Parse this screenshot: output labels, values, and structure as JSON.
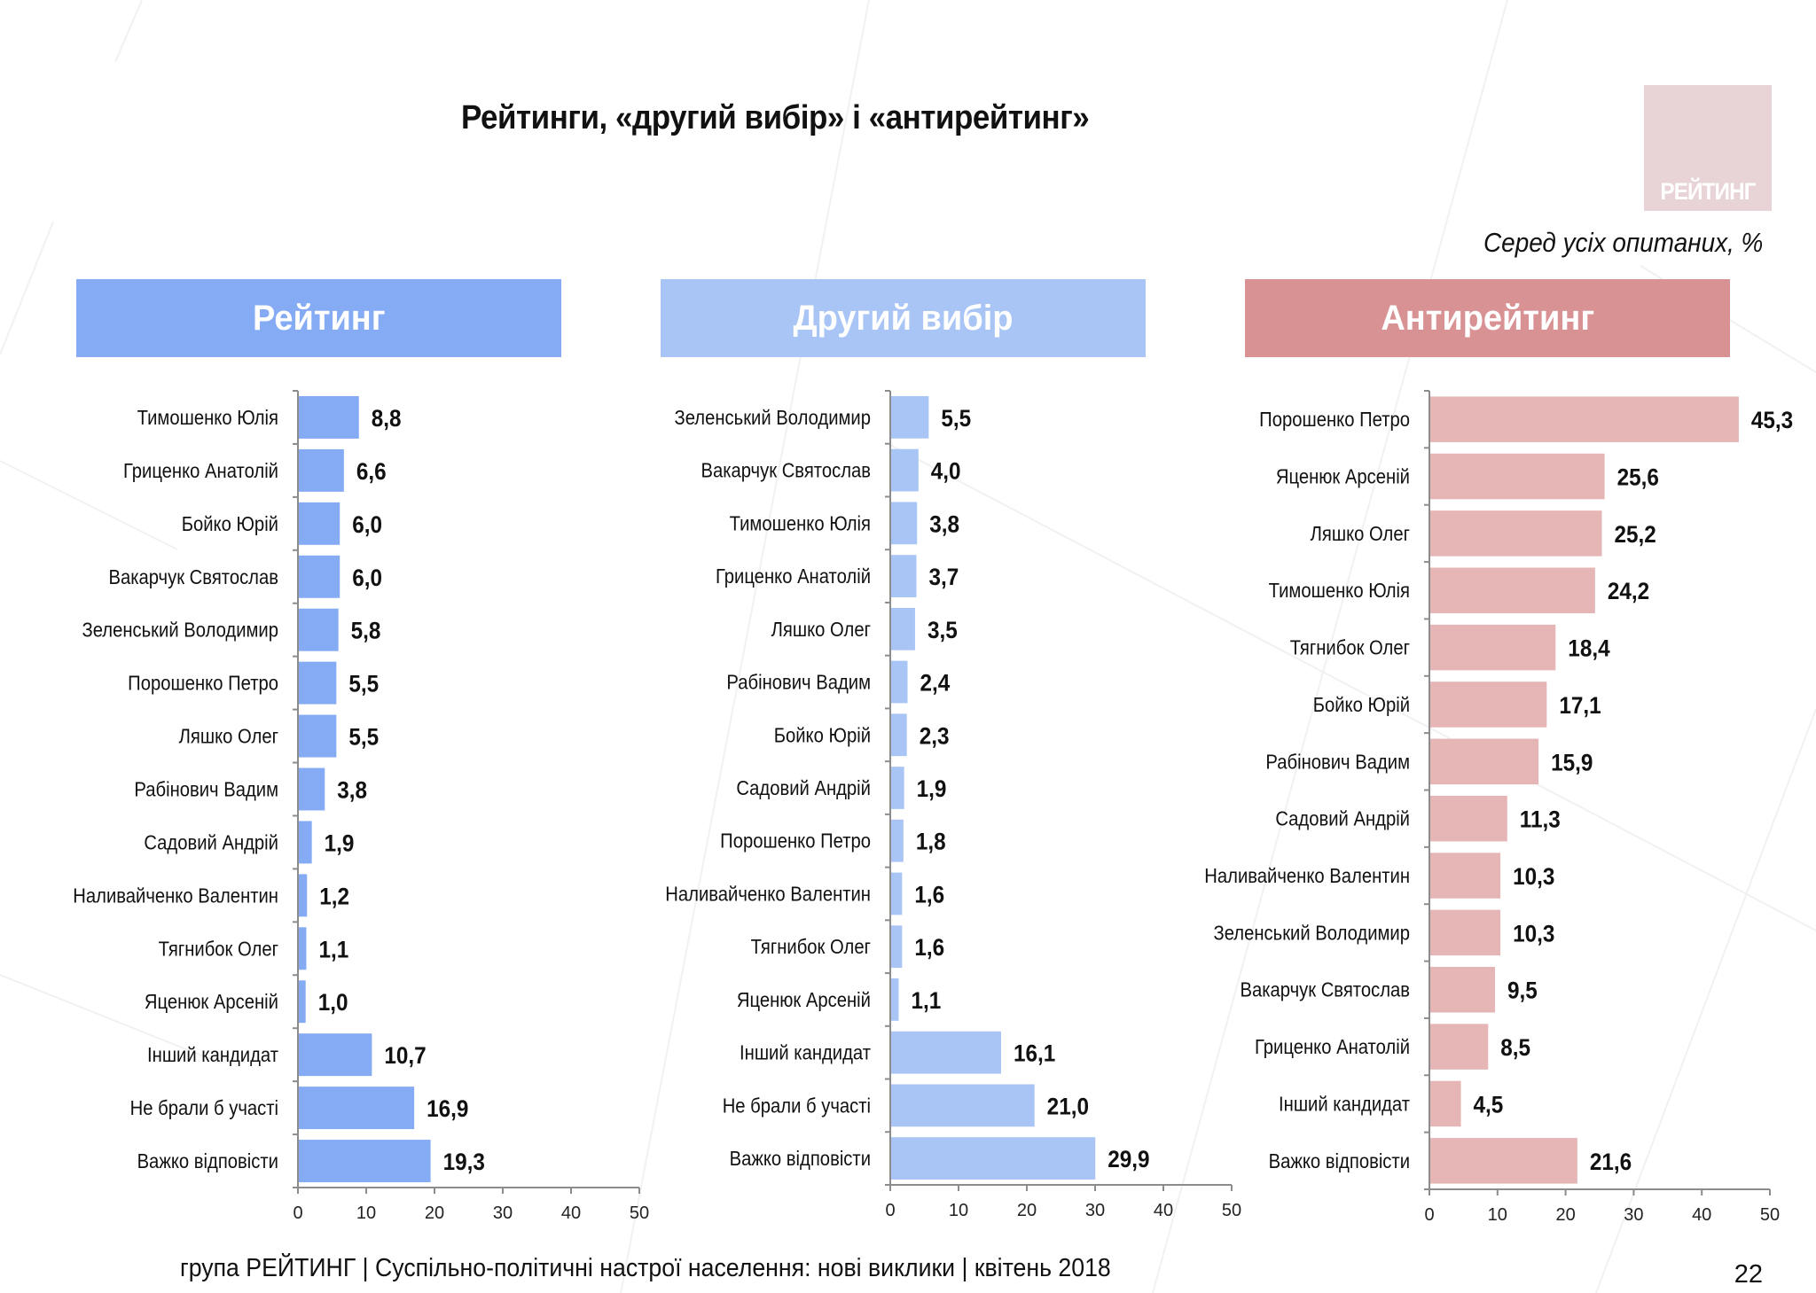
{
  "header": {
    "title": "Рейтинги, «другий вибір» і «антирейтинг»",
    "logo_text": "РЕЙТИНГ",
    "subtitle": "Серед усіх опитаних, %"
  },
  "footer": {
    "text": "група РЕЙТИНГ  |  Суспільно-політичні настрої населення: нові виклики  |  квітень 2018",
    "page_number": "22"
  },
  "colors": {
    "rating": "#85abf5",
    "second_choice": "#a9c5f6",
    "antirating": "#d99294",
    "antirating_bar": "#e6b5b6"
  },
  "chart_data": [
    {
      "type": "bar",
      "orientation": "horizontal",
      "title": "Рейтинг",
      "categories": [
        "Тимошенко Юлія",
        "Гриценко Анатолій",
        "Бойко Юрій",
        "Вакарчук Святослав",
        "Зеленський Володимир",
        "Порошенко Петро",
        "Ляшко Олег",
        "Рабінович Вадим",
        "Садовий Андрій",
        "Наливайченко Валентин",
        "Тягнибок Олег",
        "Яценюк Арсеній",
        "Інший кандидат",
        "Не брали б участі",
        "Важко відповісти"
      ],
      "values": [
        8.8,
        6.6,
        6.0,
        6.0,
        5.8,
        5.5,
        5.5,
        3.8,
        1.9,
        1.2,
        1.1,
        1.0,
        10.7,
        16.9,
        19.3
      ],
      "labels": [
        "8,8",
        "6,6",
        "6,0",
        "6,0",
        "5,8",
        "5,5",
        "5,5",
        "3,8",
        "1,9",
        "1,2",
        "1,1",
        "1,0",
        "10,7",
        "16,9",
        "19,3"
      ],
      "xlim": [
        0,
        50
      ],
      "xticks": [
        "0",
        "10",
        "20",
        "30",
        "40",
        "50"
      ],
      "grid": false,
      "color": "#85abf5"
    },
    {
      "type": "bar",
      "orientation": "horizontal",
      "title": "Другий вибір",
      "categories": [
        "Зеленський Володимир",
        "Вакарчук Святослав",
        "Тимошенко Юлія",
        "Гриценко Анатолій",
        "Ляшко Олег",
        "Рабінович Вадим",
        "Бойко Юрій",
        "Садовий Андрій",
        "Порошенко Петро",
        "Наливайченко Валентин",
        "Тягнибок Олег",
        "Яценюк Арсеній",
        "Інший кандидат",
        "Не брали б участі",
        "Важко відповісти"
      ],
      "values": [
        5.5,
        4.0,
        3.8,
        3.7,
        3.5,
        2.4,
        2.3,
        1.9,
        1.8,
        1.6,
        1.6,
        1.1,
        16.1,
        21.0,
        29.9
      ],
      "labels": [
        "5,5",
        "4,0",
        "3,8",
        "3,7",
        "3,5",
        "2,4",
        "2,3",
        "1,9",
        "1,8",
        "1,6",
        "1,6",
        "1,1",
        "16,1",
        "21,0",
        "29,9"
      ],
      "xlim": [
        0,
        50
      ],
      "xticks": [
        "0",
        "10",
        "20",
        "30",
        "40",
        "50"
      ],
      "grid": false,
      "color": "#a9c5f6"
    },
    {
      "type": "bar",
      "orientation": "horizontal",
      "title": "Антирейтинг",
      "categories": [
        "Порошенко Петро",
        "Яценюк Арсеній",
        "Ляшко Олег",
        "Тимошенко Юлія",
        "Тягнибок Олег",
        "Бойко Юрій",
        "Рабінович Вадим",
        "Садовий Андрій",
        "Наливайченко Валентин",
        "Зеленський Володимир",
        "Вакарчук Святослав",
        "Гриценко Анатолій",
        "Інший кандидат",
        "Важко відповісти"
      ],
      "values": [
        45.3,
        25.6,
        25.2,
        24.2,
        18.4,
        17.1,
        15.9,
        11.3,
        10.3,
        10.3,
        9.5,
        8.5,
        4.5,
        21.6
      ],
      "labels": [
        "45,3",
        "25,6",
        "25,2",
        "24,2",
        "18,4",
        "17,1",
        "15,9",
        "11,3",
        "10,3",
        "10,3",
        "9,5",
        "8,5",
        "4,5",
        "21,6"
      ],
      "xlim": [
        0,
        50
      ],
      "xticks": [
        "0",
        "10",
        "20",
        "30",
        "40",
        "50"
      ],
      "grid": false,
      "color": "#e6b5b6"
    }
  ]
}
